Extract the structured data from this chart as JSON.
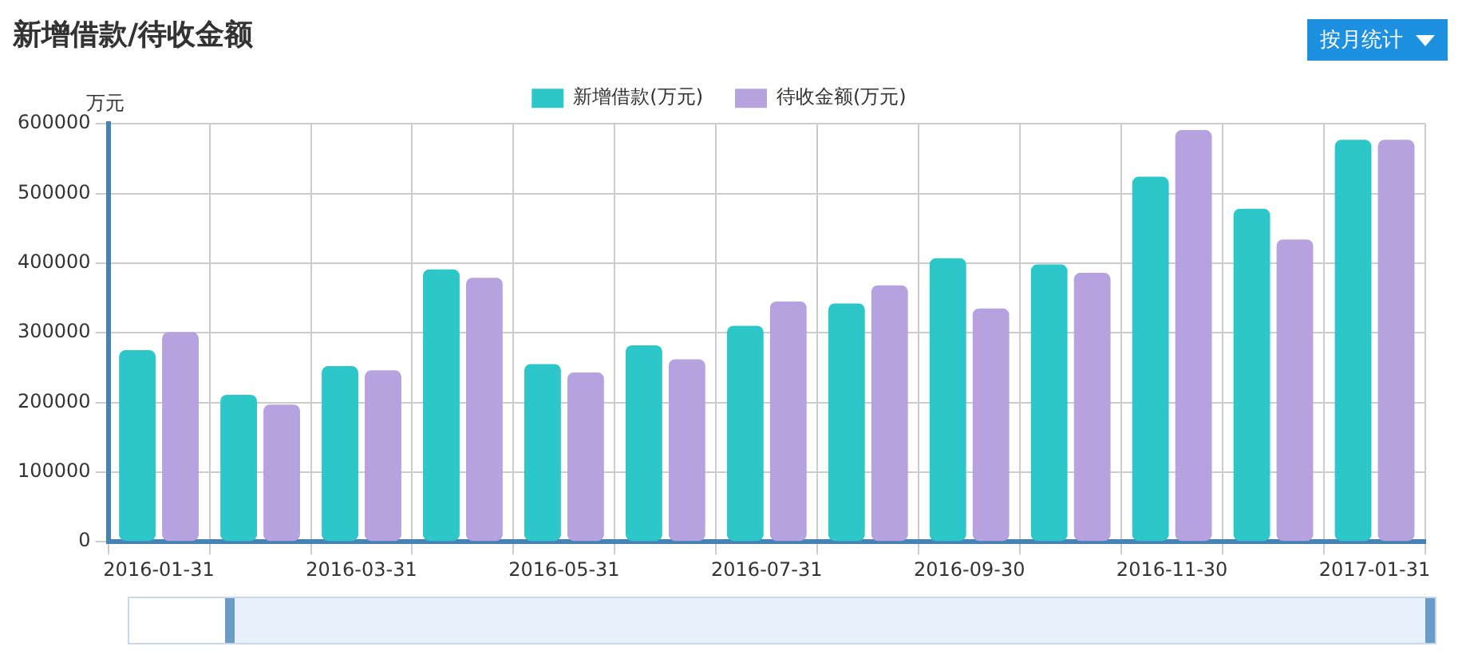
{
  "chart_data": {
    "type": "bar",
    "title": "新增借款/待收金额",
    "ylabel": "万元",
    "annotations": [
      "按月统计"
    ],
    "categories": [
      "2016-01-31",
      null,
      "2016-03-31",
      null,
      "2016-05-31",
      null,
      "2016-07-31",
      null,
      "2016-09-30",
      null,
      "2016-11-30",
      null,
      "2017-01-31"
    ],
    "series": [
      {
        "name": "新增借款(万元)",
        "color": "#2ec7c9",
        "values": [
          275000,
          211000,
          252000,
          391000,
          255000,
          282000,
          310000,
          342000,
          407000,
          398000,
          524000,
          478000,
          577000
        ]
      },
      {
        "name": "待收金额(万元)",
        "color": "#b6a2de",
        "values": [
          301000,
          197000,
          246000,
          379000,
          243000,
          262000,
          345000,
          368000,
          335000,
          386000,
          591000,
          434000,
          577000
        ]
      }
    ],
    "ylim": [
      0,
      600000
    ],
    "yticks": [
      0,
      100000,
      200000,
      300000,
      400000,
      500000,
      600000
    ],
    "grid": true,
    "legend": "top"
  }
}
